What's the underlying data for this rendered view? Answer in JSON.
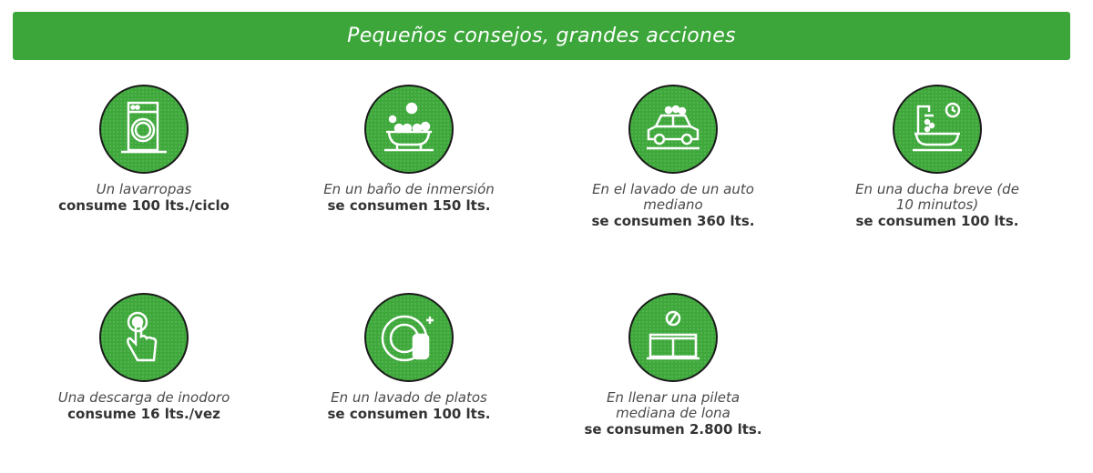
{
  "header": {
    "title": "Pequeños consejos, grandes acciones"
  },
  "colors": {
    "accent": "#3ca63a",
    "circle_border": "#1a1a1a"
  },
  "tips": [
    {
      "icon": "washing-machine-icon",
      "description": "Un lavarropas",
      "amount": "consume 100 lts./ciclo"
    },
    {
      "icon": "bathtub-bubbles-icon",
      "description": "En un baño de inmersión",
      "amount": "se consumen 150 lts."
    },
    {
      "icon": "car-wash-icon",
      "description": "En el lavado de un auto mediano",
      "amount": "se consumen 360 lts."
    },
    {
      "icon": "shower-clock-icon",
      "description": "En una ducha breve (de 10 minutos)",
      "amount": "se consumen 100 lts."
    },
    {
      "icon": "toilet-flush-button-icon",
      "description": "Una descarga de inodoro",
      "amount": "consume 16 lts./vez"
    },
    {
      "icon": "dishwashing-plate-sponge-icon",
      "description": "En un lavado de platos",
      "amount": "se consumen 100 lts."
    },
    {
      "icon": "pool-ball-icon",
      "description": "En llenar una pileta mediana de lona",
      "amount": "se consumen 2.800 lts."
    }
  ]
}
